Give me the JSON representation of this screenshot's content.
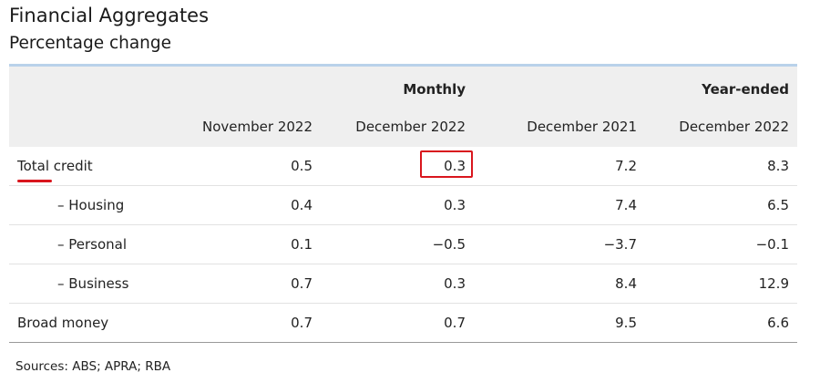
{
  "title": "Financial Aggregates",
  "subtitle": "Percentage change",
  "groups": {
    "monthly": "Monthly",
    "year_ended": "Year-ended"
  },
  "columns": [
    "November 2022",
    "December 2022",
    "December 2021",
    "December 2022"
  ],
  "rows": [
    {
      "label": "Total credit",
      "values": [
        "0.5",
        "0.3",
        "7.2",
        "8.3"
      ]
    },
    {
      "label": "– Housing",
      "values": [
        "0.4",
        "0.3",
        "7.4",
        "6.5"
      ]
    },
    {
      "label": "– Personal",
      "values": [
        "0.1",
        "−0.5",
        "−3.7",
        "−0.1"
      ]
    },
    {
      "label": "– Business",
      "values": [
        "0.7",
        "0.3",
        "8.4",
        "12.9"
      ]
    },
    {
      "label": "Broad money",
      "values": [
        "0.7",
        "0.7",
        "9.5",
        "6.6"
      ]
    }
  ],
  "annotations": {
    "underline_color": "#d9161d",
    "highlight_color": "#d9161d"
  },
  "source": "Sources: ABS; APRA; RBA"
}
